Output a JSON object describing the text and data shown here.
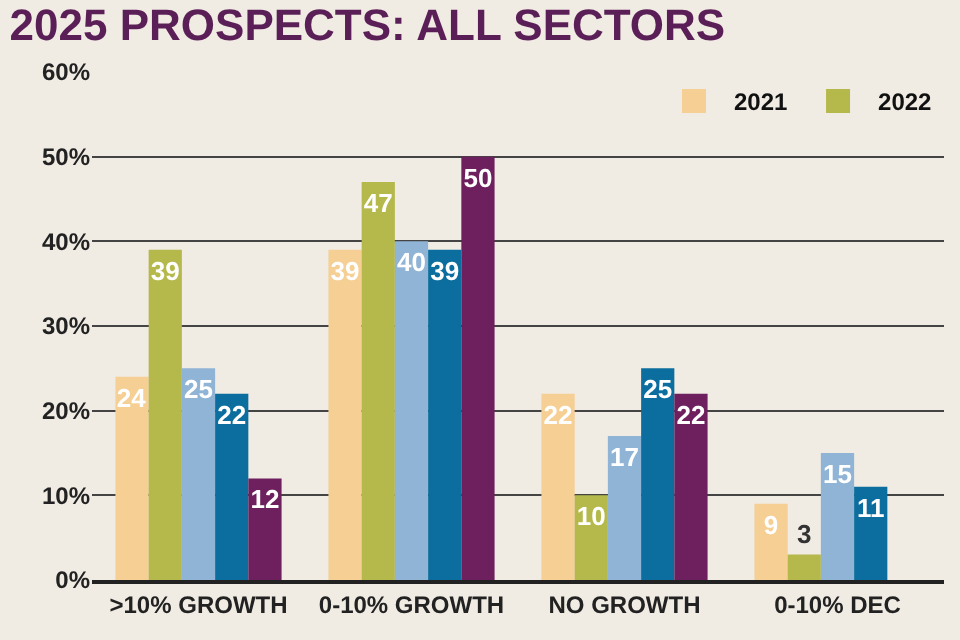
{
  "chart_data": {
    "type": "bar",
    "title": "2025 PROSPECTS: ALL SECTORS",
    "categories": [
      ">10% GROWTH",
      "0-10% GROWTH",
      "NO GROWTH",
      "0-10% DEC"
    ],
    "series": [
      {
        "name": "2021",
        "color": "#f5cf94",
        "values": [
          24,
          39,
          22,
          9
        ]
      },
      {
        "name": "2022",
        "color": "#b5b84a",
        "values": [
          39,
          47,
          10,
          3
        ]
      },
      {
        "color": "#8fb4d6",
        "values": [
          25,
          40,
          17,
          15
        ]
      },
      {
        "color": "#0b6e9e",
        "values": [
          22,
          39,
          25,
          11
        ]
      },
      {
        "color": "#6e1f5e",
        "values": [
          12,
          50,
          22,
          null
        ]
      }
    ],
    "ylim": [
      0,
      60
    ],
    "yticks": [
      {
        "value": 0,
        "label": "0%"
      },
      {
        "value": 10,
        "label": "10%"
      },
      {
        "value": 20,
        "label": "20%"
      },
      {
        "value": 30,
        "label": "30%"
      },
      {
        "value": 40,
        "label": "40%"
      },
      {
        "value": 50,
        "label": "50%"
      },
      {
        "value": 60,
        "label": "60%"
      }
    ],
    "grid": "y",
    "legend": "top right",
    "data_labels": true
  }
}
